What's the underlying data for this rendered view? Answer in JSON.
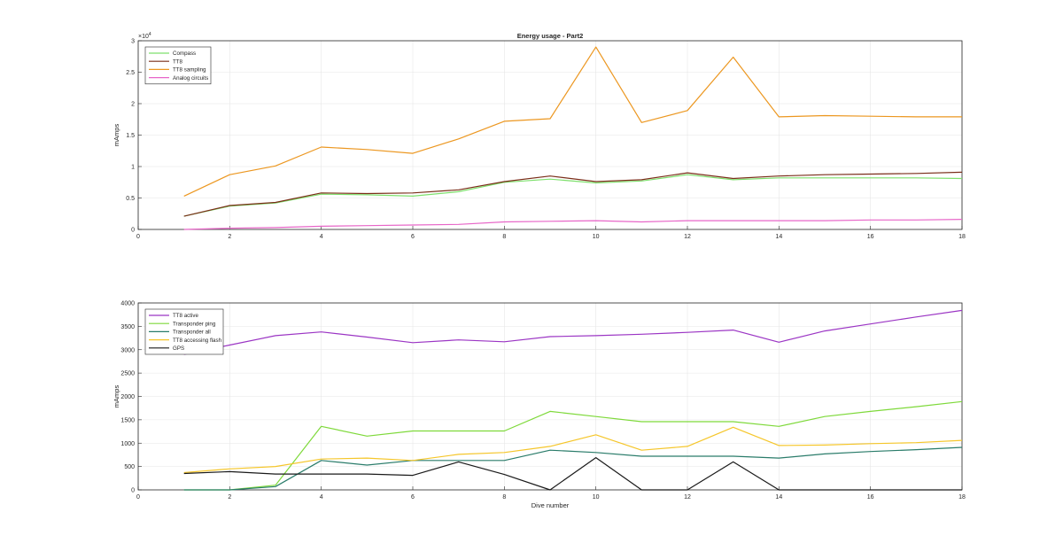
{
  "chart_data": [
    {
      "type": "line",
      "title": "Energy usage - Part2",
      "xlabel": "",
      "ylabel": "mAmps",
      "y_exponent_label": "×10",
      "y_exponent_power": "4",
      "xlim": [
        0,
        18
      ],
      "ylim": [
        0,
        30000
      ],
      "xticks": [
        "0",
        "2",
        "4",
        "6",
        "8",
        "10",
        "12",
        "14",
        "16",
        "18"
      ],
      "yticks": [
        "0",
        "0.5",
        "1",
        "1.5",
        "2",
        "2.5",
        "3"
      ],
      "grid": true,
      "legend_position": "top-left",
      "x": [
        1,
        2,
        3,
        4,
        5,
        6,
        7,
        8,
        9,
        10,
        11,
        12,
        13,
        14,
        15,
        16,
        17,
        18
      ],
      "series": [
        {
          "name": "Compass",
          "color": "#7ee06d",
          "values": [
            2100,
            3700,
            4200,
            5600,
            5500,
            5300,
            6000,
            7500,
            8000,
            7400,
            7700,
            8700,
            7900,
            8200,
            8200,
            8200,
            8200,
            8100
          ]
        },
        {
          "name": "TT8",
          "color": "#7a2e19",
          "values": [
            2100,
            3800,
            4300,
            5800,
            5700,
            5800,
            6300,
            7600,
            8500,
            7600,
            7900,
            9000,
            8100,
            8500,
            8700,
            8800,
            8900,
            9100
          ]
        },
        {
          "name": "TT8 sampling",
          "color": "#ec9720",
          "values": [
            5300,
            8700,
            10100,
            13100,
            12700,
            12100,
            14400,
            17200,
            17600,
            29000,
            17000,
            18900,
            27400,
            17900,
            18100,
            18000,
            17900,
            17900
          ]
        },
        {
          "name": "Analog circuits",
          "color": "#e766c8",
          "values": [
            0,
            200,
            300,
            500,
            600,
            700,
            800,
            1200,
            1300,
            1400,
            1200,
            1400,
            1400,
            1400,
            1400,
            1500,
            1500,
            1600
          ]
        }
      ]
    },
    {
      "type": "line",
      "title": "",
      "xlabel": "Dive number",
      "ylabel": "mAmps",
      "xlim": [
        0,
        18
      ],
      "ylim": [
        0,
        4000
      ],
      "xticks": [
        "0",
        "2",
        "4",
        "6",
        "8",
        "10",
        "12",
        "14",
        "16",
        "18"
      ],
      "yticks": [
        "0",
        "500",
        "1000",
        "1500",
        "2000",
        "2500",
        "3000",
        "3500",
        "4000"
      ],
      "grid": true,
      "legend_position": "top-left",
      "x": [
        1,
        2,
        3,
        4,
        5,
        6,
        7,
        8,
        9,
        10,
        11,
        12,
        13,
        14,
        15,
        16,
        17,
        18
      ],
      "series": [
        {
          "name": "TT8 active",
          "color": "#9b35c4",
          "values": [
            2900,
            3100,
            3300,
            3380,
            3270,
            3150,
            3210,
            3170,
            3280,
            3300,
            3330,
            3370,
            3420,
            3160,
            3400,
            3550,
            3700,
            3840
          ]
        },
        {
          "name": "Transponder ping",
          "color": "#7ed93a",
          "values": [
            0,
            0,
            100,
            1360,
            1150,
            1260,
            1260,
            1260,
            1680,
            1570,
            1460,
            1460,
            1460,
            1360,
            1570,
            1680,
            1780,
            1890
          ]
        },
        {
          "name": "Transponder all",
          "color": "#2a7c6a",
          "values": [
            0,
            0,
            70,
            630,
            530,
            630,
            630,
            630,
            850,
            800,
            720,
            720,
            720,
            680,
            770,
            820,
            860,
            910
          ]
        },
        {
          "name": "TT8 accessing flash",
          "color": "#f5c62a",
          "values": [
            370,
            450,
            500,
            660,
            680,
            630,
            760,
            800,
            930,
            1180,
            850,
            930,
            1340,
            950,
            960,
            990,
            1010,
            1060
          ]
        },
        {
          "name": "GPS",
          "color": "#1a1a1a",
          "values": [
            350,
            390,
            340,
            340,
            340,
            310,
            600,
            330,
            0,
            690,
            0,
            0,
            600,
            0,
            0,
            0,
            0,
            0
          ]
        }
      ]
    }
  ]
}
